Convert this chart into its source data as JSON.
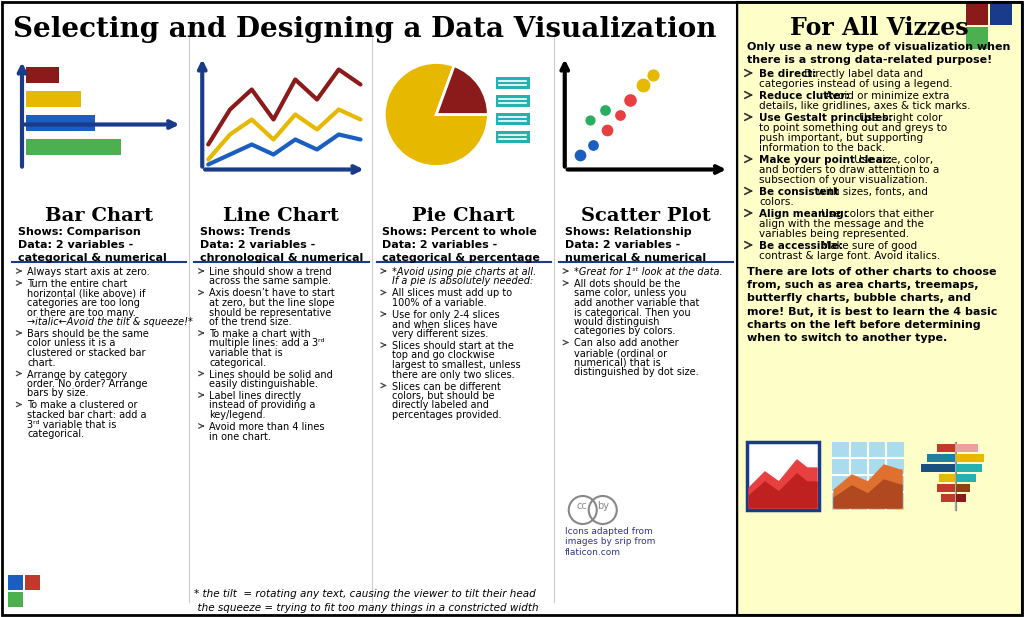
{
  "title": "Selecting and Designing a Data Visualization",
  "bg_color": "#ffffff",
  "sidebar_bg": "#fefec8",
  "sections": [
    {
      "name": "Bar Chart",
      "shows": "Shows: Comparison\nData: 2 variables -\ncategorical & numerical",
      "bullets": [
        [
          "normal",
          "Always start axis at zero."
        ],
        [
          "normal",
          "Turn the entire chart\nhorizontal (like above) if\ncategories are too long\nor there are too many.\n→italic←Avoid the tilt & squeeze!*"
        ],
        [
          "normal",
          "Bars should be the same\ncolor unless it is a\nclustered or stacked bar\nchart."
        ],
        [
          "normal",
          "Arrange by category\norder. No order? Arrange\nbars by size."
        ],
        [
          "normal",
          "To make a clustered or\nstacked bar chart: add a\n3ʳᵈ variable that is\ncategorical."
        ]
      ]
    },
    {
      "name": "Line Chart",
      "shows": "Shows: Trends\nData: 2 variables -\nchronological & numerical",
      "bullets": [
        [
          "normal",
          "Line should show a trend\nacross the same sample."
        ],
        [
          "normal",
          "Axis doesn’t have to start\nat zero, but the line slope\nshould be representative\nof the trend size."
        ],
        [
          "normal",
          "To make a chart with\nmultiple lines: add a 3ʳᵈ\nvariable that is\ncategorical."
        ],
        [
          "normal",
          "Lines should be solid and\neasily distinguishable."
        ],
        [
          "normal",
          "Label lines directly\ninstead of providing a\nkey/legend."
        ],
        [
          "normal",
          "Avoid more than 4 lines\nin one chart."
        ]
      ]
    },
    {
      "name": "Pie Chart",
      "shows": "Shows: Percent to whole\nData: 2 variables -\ncategorical & percentage",
      "bullets": [
        [
          "italic",
          "*Avoid using pie charts at all.\nIf a pie is absolutely needed:"
        ],
        [
          "normal",
          "All slices must add up to\n100% of a variable."
        ],
        [
          "normal",
          "Use for only 2-4 slices\nand when slices have\nvery different sizes."
        ],
        [
          "normal",
          "Slices should start at the\ntop and go clockwise\nlargest to smallest, unless\nthere are only two slices."
        ],
        [
          "normal",
          "Slices can be different\ncolors, but should be\ndirectly labeled and\npercentages provided."
        ]
      ]
    },
    {
      "name": "Scatter Plot",
      "shows": "Shows: Relationship\nData: 2 variables -\nnumerical & numerical",
      "bullets": [
        [
          "italic",
          "*Great for 1ˢᵗ look at the data."
        ],
        [
          "normal",
          "All dots should be the\nsame color, unless you\nadd another variable that\nis categorical. Then you\nwould distinguish\ncategories by colors."
        ],
        [
          "normal",
          "Can also add another\nvariable (ordinal or\nnumerical) that is\ndistinguished by dot size."
        ]
      ]
    }
  ],
  "sidebar_title": "For All Vizzes",
  "sidebar_intro": "Only use a new type of visualization when\nthere is a strong data-related purpose!",
  "sidebar_bullets": [
    [
      "Be direct:",
      " Directly label data and\ncategories instead of using a legend."
    ],
    [
      "Reduce clutter:",
      " Avoid or minimize extra\ndetails, like gridlines, axes & tick marks."
    ],
    [
      "Use Gestalt principles:",
      " Use bright color\nto point something out and greys to\npush important, but supporting\ninformation to the back."
    ],
    [
      "Make your point clear:",
      " Use size, color,\nand borders to draw attention to a\nsubsection of your visualization."
    ],
    [
      "Be consistent",
      " with sizes, fonts, and\ncolors."
    ],
    [
      "Align meaning:",
      " Use colors that either\nalign with the message and the\nvariables being represented."
    ],
    [
      "Be accessible:",
      " Make sure of good\ncontrast & large font. Avoid italics."
    ]
  ],
  "sidebar_footer": "There are lots of other charts to choose\nfrom, such as area charts, treemaps,\nbutterfly charts, bubble charts, and\nmore! But, it is best to learn the 4 basic\ncharts on the left before determining\nwhen to switch to another type.",
  "footer_note": "* the tilt  = rotating any text, causing the viewer to tilt their head\n  the squeeze = trying to fit too many things in a constricted width",
  "cc_text": "Icons adapted from\nimages by srip from\nflaticon.com"
}
